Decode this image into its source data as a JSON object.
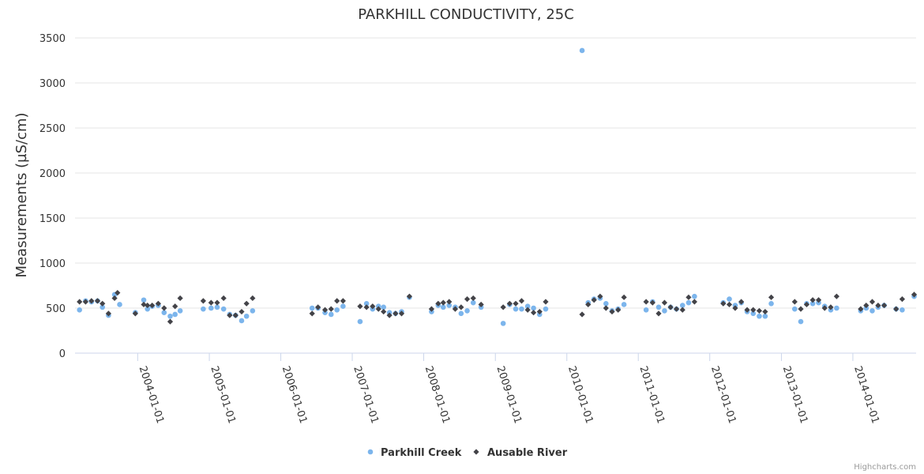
{
  "chart_data": {
    "type": "scatter",
    "title": "PARKHILL CONDUCTIVITY, 25C",
    "ylabel": "Measurements (µS/cm)",
    "xlabel": "",
    "ylim": [
      0,
      3500
    ],
    "xlim": [
      "2003-02-15",
      "2014-11-20"
    ],
    "yticks": [
      0,
      500,
      1000,
      1500,
      2000,
      2500,
      3000,
      3500
    ],
    "xticks": [
      "2004-01-01",
      "2005-01-01",
      "2006-01-01",
      "2007-01-01",
      "2008-01-01",
      "2009-01-01",
      "2010-01-01",
      "2011-01-01",
      "2012-01-01",
      "2013-01-01",
      "2014-01-01"
    ],
    "grid": true,
    "legend_position": "bottom-center",
    "credits": "Highcharts.com",
    "series": [
      {
        "name": "Parkhill Creek",
        "color": "#7cb5ec",
        "marker": "circle",
        "points": [
          [
            "2003-03-10",
            480
          ],
          [
            "2003-04-10",
            580
          ],
          [
            "2003-05-10",
            570
          ],
          [
            "2003-06-10",
            580
          ],
          [
            "2003-07-05",
            510
          ],
          [
            "2003-08-05",
            420
          ],
          [
            "2003-09-05",
            650
          ],
          [
            "2003-10-01",
            540
          ],
          [
            "2003-12-20",
            450
          ],
          [
            "2004-02-01",
            590
          ],
          [
            "2004-02-20",
            490
          ],
          [
            "2004-03-15",
            520
          ],
          [
            "2004-04-15",
            530
          ],
          [
            "2004-05-15",
            450
          ],
          [
            "2004-06-15",
            410
          ],
          [
            "2004-07-10",
            430
          ],
          [
            "2004-08-05",
            470
          ],
          [
            "2004-12-01",
            490
          ],
          [
            "2005-01-10",
            500
          ],
          [
            "2005-02-10",
            510
          ],
          [
            "2005-03-15",
            490
          ],
          [
            "2005-04-15",
            430
          ],
          [
            "2005-05-15",
            420
          ],
          [
            "2005-06-15",
            360
          ],
          [
            "2005-07-10",
            410
          ],
          [
            "2005-08-10",
            470
          ],
          [
            "2006-06-10",
            500
          ],
          [
            "2006-07-10",
            500
          ],
          [
            "2006-08-15",
            450
          ],
          [
            "2006-09-15",
            430
          ],
          [
            "2006-10-15",
            480
          ],
          [
            "2006-11-15",
            520
          ],
          [
            "2007-02-10",
            350
          ],
          [
            "2007-03-15",
            550
          ],
          [
            "2007-04-15",
            490
          ],
          [
            "2007-05-15",
            520
          ],
          [
            "2007-06-10",
            510
          ],
          [
            "2007-07-10",
            450
          ],
          [
            "2007-08-10",
            440
          ],
          [
            "2007-09-10",
            460
          ],
          [
            "2007-10-20",
            620
          ],
          [
            "2008-02-10",
            460
          ],
          [
            "2008-03-15",
            530
          ],
          [
            "2008-04-10",
            510
          ],
          [
            "2008-05-10",
            530
          ],
          [
            "2008-06-10",
            510
          ],
          [
            "2008-07-10",
            440
          ],
          [
            "2008-08-10",
            470
          ],
          [
            "2008-09-10",
            560
          ],
          [
            "2008-10-20",
            510
          ],
          [
            "2009-02-10",
            330
          ],
          [
            "2009-03-15",
            540
          ],
          [
            "2009-04-15",
            490
          ],
          [
            "2009-05-15",
            490
          ],
          [
            "2009-06-15",
            520
          ],
          [
            "2009-07-15",
            500
          ],
          [
            "2009-08-15",
            430
          ],
          [
            "2009-09-15",
            490
          ],
          [
            "2010-03-20",
            3360
          ],
          [
            "2010-04-20",
            560
          ],
          [
            "2010-05-20",
            600
          ],
          [
            "2010-06-20",
            610
          ],
          [
            "2010-07-20",
            550
          ],
          [
            "2010-08-20",
            470
          ],
          [
            "2010-09-20",
            490
          ],
          [
            "2010-10-20",
            540
          ],
          [
            "2011-02-10",
            480
          ],
          [
            "2011-03-15",
            570
          ],
          [
            "2011-04-15",
            510
          ],
          [
            "2011-05-15",
            470
          ],
          [
            "2011-06-15",
            510
          ],
          [
            "2011-07-15",
            490
          ],
          [
            "2011-08-15",
            530
          ],
          [
            "2011-09-15",
            560
          ],
          [
            "2011-10-15",
            630
          ],
          [
            "2012-03-10",
            560
          ],
          [
            "2012-04-10",
            600
          ],
          [
            "2012-05-10",
            530
          ],
          [
            "2012-06-10",
            560
          ],
          [
            "2012-07-10",
            460
          ],
          [
            "2012-08-10",
            440
          ],
          [
            "2012-09-10",
            410
          ],
          [
            "2012-10-10",
            410
          ],
          [
            "2012-11-10",
            550
          ],
          [
            "2013-03-10",
            490
          ],
          [
            "2013-04-10",
            350
          ],
          [
            "2013-05-10",
            550
          ],
          [
            "2013-06-10",
            550
          ],
          [
            "2013-07-10",
            560
          ],
          [
            "2013-08-10",
            520
          ],
          [
            "2013-09-10",
            480
          ],
          [
            "2013-10-10",
            500
          ],
          [
            "2014-02-10",
            470
          ],
          [
            "2014-03-10",
            500
          ],
          [
            "2014-04-10",
            470
          ],
          [
            "2014-05-10",
            510
          ],
          [
            "2014-06-10",
            530
          ],
          [
            "2014-08-10",
            490
          ],
          [
            "2014-09-10",
            480
          ],
          [
            "2014-11-10",
            630
          ]
        ]
      },
      {
        "name": "Ausable River",
        "color": "#434348",
        "marker": "diamond",
        "points": [
          [
            "2003-03-10",
            570
          ],
          [
            "2003-04-10",
            570
          ],
          [
            "2003-05-10",
            580
          ],
          [
            "2003-06-10",
            580
          ],
          [
            "2003-07-05",
            550
          ],
          [
            "2003-08-05",
            440
          ],
          [
            "2003-09-05",
            610
          ],
          [
            "2003-09-20",
            670
          ],
          [
            "2003-12-20",
            440
          ],
          [
            "2004-02-01",
            540
          ],
          [
            "2004-02-20",
            530
          ],
          [
            "2004-03-15",
            530
          ],
          [
            "2004-04-15",
            550
          ],
          [
            "2004-05-15",
            500
          ],
          [
            "2004-06-15",
            350
          ],
          [
            "2004-07-10",
            520
          ],
          [
            "2004-08-05",
            610
          ],
          [
            "2004-12-01",
            580
          ],
          [
            "2005-01-10",
            560
          ],
          [
            "2005-02-10",
            560
          ],
          [
            "2005-03-15",
            610
          ],
          [
            "2005-04-15",
            420
          ],
          [
            "2005-05-15",
            420
          ],
          [
            "2005-06-15",
            460
          ],
          [
            "2005-07-10",
            550
          ],
          [
            "2005-08-10",
            610
          ],
          [
            "2006-06-10",
            440
          ],
          [
            "2006-07-10",
            510
          ],
          [
            "2006-08-15",
            480
          ],
          [
            "2006-09-15",
            490
          ],
          [
            "2006-10-15",
            580
          ],
          [
            "2006-11-15",
            580
          ],
          [
            "2007-02-10",
            520
          ],
          [
            "2007-03-15",
            510
          ],
          [
            "2007-04-15",
            520
          ],
          [
            "2007-05-15",
            490
          ],
          [
            "2007-06-10",
            460
          ],
          [
            "2007-07-10",
            420
          ],
          [
            "2007-08-10",
            440
          ],
          [
            "2007-09-10",
            440
          ],
          [
            "2007-10-20",
            630
          ],
          [
            "2008-02-10",
            490
          ],
          [
            "2008-03-15",
            550
          ],
          [
            "2008-04-10",
            560
          ],
          [
            "2008-05-10",
            570
          ],
          [
            "2008-06-10",
            490
          ],
          [
            "2008-07-10",
            510
          ],
          [
            "2008-08-10",
            600
          ],
          [
            "2008-09-10",
            610
          ],
          [
            "2008-10-20",
            540
          ],
          [
            "2009-02-10",
            510
          ],
          [
            "2009-03-15",
            550
          ],
          [
            "2009-04-15",
            550
          ],
          [
            "2009-05-15",
            580
          ],
          [
            "2009-06-15",
            480
          ],
          [
            "2009-07-15",
            450
          ],
          [
            "2009-08-15",
            460
          ],
          [
            "2009-09-15",
            570
          ],
          [
            "2010-03-20",
            430
          ],
          [
            "2010-04-20",
            540
          ],
          [
            "2010-05-20",
            590
          ],
          [
            "2010-06-20",
            630
          ],
          [
            "2010-07-20",
            500
          ],
          [
            "2010-08-20",
            460
          ],
          [
            "2010-09-20",
            480
          ],
          [
            "2010-10-20",
            620
          ],
          [
            "2011-02-10",
            570
          ],
          [
            "2011-03-15",
            560
          ],
          [
            "2011-04-15",
            440
          ],
          [
            "2011-05-15",
            560
          ],
          [
            "2011-06-15",
            510
          ],
          [
            "2011-07-15",
            490
          ],
          [
            "2011-08-15",
            480
          ],
          [
            "2011-09-15",
            620
          ],
          [
            "2011-10-15",
            570
          ],
          [
            "2012-03-10",
            550
          ],
          [
            "2012-04-10",
            540
          ],
          [
            "2012-05-10",
            500
          ],
          [
            "2012-06-10",
            570
          ],
          [
            "2012-07-10",
            480
          ],
          [
            "2012-08-10",
            480
          ],
          [
            "2012-09-10",
            470
          ],
          [
            "2012-10-10",
            460
          ],
          [
            "2012-11-10",
            620
          ],
          [
            "2013-03-10",
            570
          ],
          [
            "2013-04-10",
            490
          ],
          [
            "2013-05-10",
            540
          ],
          [
            "2013-06-10",
            590
          ],
          [
            "2013-07-10",
            590
          ],
          [
            "2013-08-10",
            500
          ],
          [
            "2013-09-10",
            510
          ],
          [
            "2013-10-10",
            630
          ],
          [
            "2014-02-10",
            490
          ],
          [
            "2014-03-10",
            530
          ],
          [
            "2014-04-10",
            570
          ],
          [
            "2014-05-10",
            530
          ],
          [
            "2014-06-10",
            530
          ],
          [
            "2014-08-10",
            490
          ],
          [
            "2014-09-10",
            600
          ],
          [
            "2014-11-10",
            650
          ]
        ]
      }
    ]
  }
}
